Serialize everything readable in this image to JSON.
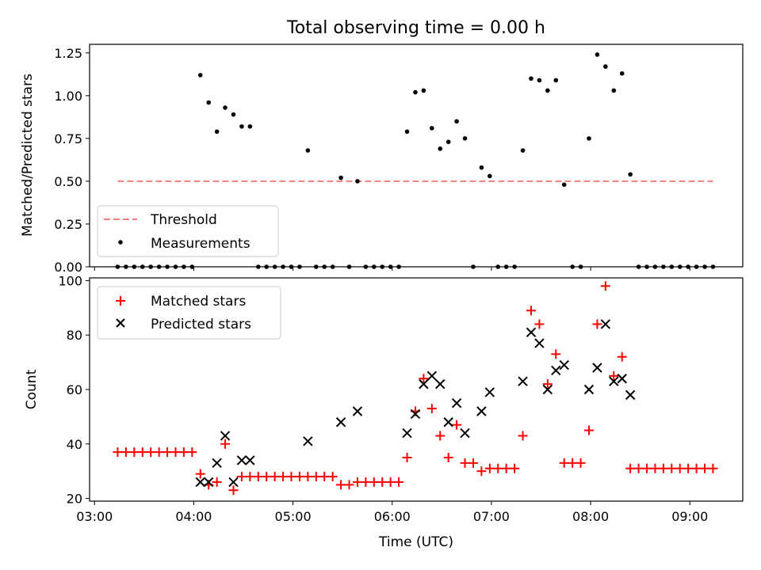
{
  "colors": {
    "threshold": "#f47f7f",
    "matched": "#ff0000",
    "predicted": "#000000",
    "measurement": "#000000",
    "axis": "#000000"
  },
  "chart_data": [
    {
      "type": "scatter",
      "title": "Total observing time = 0.00 h",
      "xlabel": "",
      "ylabel": "Matched/Predicted stars",
      "ylim": [
        0.0,
        1.3
      ],
      "yticks": [
        "0.00",
        "0.25",
        "0.50",
        "0.75",
        "1.00",
        "1.25"
      ],
      "xlim": [
        "02:57",
        "09:32"
      ],
      "grid": false,
      "legend_position": "lower-left",
      "legend": [
        "Threshold",
        "Measurements"
      ],
      "series": [
        {
          "name": "Threshold",
          "style": "dashed-line",
          "x": [
            "03:14",
            "09:14"
          ],
          "y": [
            0.5,
            0.5
          ]
        },
        {
          "name": "Measurements",
          "style": "dot",
          "points": [
            [
              "03:14",
              0.0
            ],
            [
              "03:19",
              0.0
            ],
            [
              "03:24",
              0.0
            ],
            [
              "03:29",
              0.0
            ],
            [
              "03:34",
              0.0
            ],
            [
              "03:39",
              0.0
            ],
            [
              "03:44",
              0.0
            ],
            [
              "03:49",
              0.0
            ],
            [
              "03:54",
              0.0
            ],
            [
              "03:59",
              0.0
            ],
            [
              "04:04",
              1.12
            ],
            [
              "04:09",
              0.96
            ],
            [
              "04:14",
              0.79
            ],
            [
              "04:19",
              0.93
            ],
            [
              "04:24",
              0.89
            ],
            [
              "04:29",
              0.82
            ],
            [
              "04:34",
              0.82
            ],
            [
              "04:39",
              0.0
            ],
            [
              "04:44",
              0.0
            ],
            [
              "04:49",
              0.0
            ],
            [
              "04:54",
              0.0
            ],
            [
              "04:59",
              0.0
            ],
            [
              "05:04",
              0.0
            ],
            [
              "05:09",
              0.68
            ],
            [
              "05:14",
              0.0
            ],
            [
              "05:19",
              0.0
            ],
            [
              "05:24",
              0.0
            ],
            [
              "05:29",
              0.52
            ],
            [
              "05:34",
              0.0
            ],
            [
              "05:39",
              0.5
            ],
            [
              "05:44",
              0.0
            ],
            [
              "05:49",
              0.0
            ],
            [
              "05:54",
              0.0
            ],
            [
              "05:59",
              0.0
            ],
            [
              "06:04",
              0.0
            ],
            [
              "06:09",
              0.79
            ],
            [
              "06:14",
              1.02
            ],
            [
              "06:19",
              1.03
            ],
            [
              "06:24",
              0.81
            ],
            [
              "06:29",
              0.69
            ],
            [
              "06:34",
              0.73
            ],
            [
              "06:39",
              0.85
            ],
            [
              "06:44",
              0.75
            ],
            [
              "06:49",
              0.0
            ],
            [
              "06:54",
              0.58
            ],
            [
              "06:59",
              0.53
            ],
            [
              "07:04",
              0.0
            ],
            [
              "07:09",
              0.0
            ],
            [
              "07:14",
              0.0
            ],
            [
              "07:19",
              0.68
            ],
            [
              "07:24",
              1.1
            ],
            [
              "07:29",
              1.09
            ],
            [
              "07:34",
              1.03
            ],
            [
              "07:39",
              1.09
            ],
            [
              "07:44",
              0.48
            ],
            [
              "07:49",
              0.0
            ],
            [
              "07:54",
              0.0
            ],
            [
              "07:59",
              0.75
            ],
            [
              "08:04",
              1.24
            ],
            [
              "08:09",
              1.17
            ],
            [
              "08:14",
              1.03
            ],
            [
              "08:19",
              1.13
            ],
            [
              "08:24",
              0.54
            ],
            [
              "08:29",
              0.0
            ],
            [
              "08:34",
              0.0
            ],
            [
              "08:39",
              0.0
            ],
            [
              "08:44",
              0.0
            ],
            [
              "08:49",
              0.0
            ],
            [
              "08:54",
              0.0
            ],
            [
              "08:59",
              0.0
            ],
            [
              "09:04",
              0.0
            ],
            [
              "09:09",
              0.0
            ],
            [
              "09:14",
              0.0
            ]
          ]
        }
      ]
    },
    {
      "type": "scatter",
      "title": "",
      "xlabel": "Time (UTC)",
      "ylabel": "Count",
      "ylim": [
        19,
        101
      ],
      "yticks": [
        "20",
        "40",
        "60",
        "80",
        "100"
      ],
      "xlim": [
        "02:57",
        "09:32"
      ],
      "xticks": [
        "03:00",
        "04:00",
        "05:00",
        "06:00",
        "07:00",
        "08:00",
        "09:00"
      ],
      "grid": false,
      "legend_position": "upper-left",
      "legend": [
        "Matched stars",
        "Predicted stars"
      ],
      "series": [
        {
          "name": "Matched stars",
          "style": "plus",
          "points": [
            [
              "03:14",
              37
            ],
            [
              "03:19",
              37
            ],
            [
              "03:24",
              37
            ],
            [
              "03:29",
              37
            ],
            [
              "03:34",
              37
            ],
            [
              "03:39",
              37
            ],
            [
              "03:44",
              37
            ],
            [
              "03:49",
              37
            ],
            [
              "03:54",
              37
            ],
            [
              "03:59",
              37
            ],
            [
              "04:04",
              29
            ],
            [
              "04:09",
              25
            ],
            [
              "04:14",
              26
            ],
            [
              "04:19",
              40
            ],
            [
              "04:24",
              23
            ],
            [
              "04:29",
              28
            ],
            [
              "04:34",
              28
            ],
            [
              "04:39",
              28
            ],
            [
              "04:44",
              28
            ],
            [
              "04:49",
              28
            ],
            [
              "04:54",
              28
            ],
            [
              "04:59",
              28
            ],
            [
              "05:04",
              28
            ],
            [
              "05:09",
              28
            ],
            [
              "05:14",
              28
            ],
            [
              "05:19",
              28
            ],
            [
              "05:24",
              28
            ],
            [
              "05:29",
              25
            ],
            [
              "05:34",
              25
            ],
            [
              "05:39",
              26
            ],
            [
              "05:44",
              26
            ],
            [
              "05:49",
              26
            ],
            [
              "05:54",
              26
            ],
            [
              "05:59",
              26
            ],
            [
              "06:04",
              26
            ],
            [
              "06:09",
              35
            ],
            [
              "06:14",
              52
            ],
            [
              "06:19",
              64
            ],
            [
              "06:24",
              53
            ],
            [
              "06:29",
              43
            ],
            [
              "06:34",
              35
            ],
            [
              "06:39",
              47
            ],
            [
              "06:44",
              33
            ],
            [
              "06:49",
              33
            ],
            [
              "06:54",
              30
            ],
            [
              "06:59",
              31
            ],
            [
              "07:04",
              31
            ],
            [
              "07:09",
              31
            ],
            [
              "07:14",
              31
            ],
            [
              "07:19",
              43
            ],
            [
              "07:24",
              89
            ],
            [
              "07:29",
              84
            ],
            [
              "07:34",
              62
            ],
            [
              "07:39",
              73
            ],
            [
              "07:44",
              33
            ],
            [
              "07:49",
              33
            ],
            [
              "07:54",
              33
            ],
            [
              "07:59",
              45
            ],
            [
              "08:04",
              84
            ],
            [
              "08:09",
              98
            ],
            [
              "08:14",
              65
            ],
            [
              "08:19",
              72
            ],
            [
              "08:24",
              31
            ],
            [
              "08:29",
              31
            ],
            [
              "08:34",
              31
            ],
            [
              "08:39",
              31
            ],
            [
              "08:44",
              31
            ],
            [
              "08:49",
              31
            ],
            [
              "08:54",
              31
            ],
            [
              "08:59",
              31
            ],
            [
              "09:04",
              31
            ],
            [
              "09:09",
              31
            ],
            [
              "09:14",
              31
            ]
          ]
        },
        {
          "name": "Predicted stars",
          "style": "cross",
          "points": [
            [
              "04:04",
              26
            ],
            [
              "04:09",
              26
            ],
            [
              "04:14",
              33
            ],
            [
              "04:19",
              43
            ],
            [
              "04:24",
              26
            ],
            [
              "04:29",
              34
            ],
            [
              "04:34",
              34
            ],
            [
              "05:09",
              41
            ],
            [
              "05:29",
              48
            ],
            [
              "05:39",
              52
            ],
            [
              "06:09",
              44
            ],
            [
              "06:14",
              51
            ],
            [
              "06:19",
              62
            ],
            [
              "06:24",
              65
            ],
            [
              "06:29",
              62
            ],
            [
              "06:34",
              48
            ],
            [
              "06:39",
              55
            ],
            [
              "06:44",
              44
            ],
            [
              "06:54",
              52
            ],
            [
              "06:59",
              59
            ],
            [
              "07:19",
              63
            ],
            [
              "07:24",
              81
            ],
            [
              "07:29",
              77
            ],
            [
              "07:34",
              60
            ],
            [
              "07:39",
              67
            ],
            [
              "07:44",
              69
            ],
            [
              "07:59",
              60
            ],
            [
              "08:04",
              68
            ],
            [
              "08:09",
              84
            ],
            [
              "08:14",
              63
            ],
            [
              "08:19",
              64
            ],
            [
              "08:24",
              58
            ]
          ]
        }
      ]
    }
  ]
}
